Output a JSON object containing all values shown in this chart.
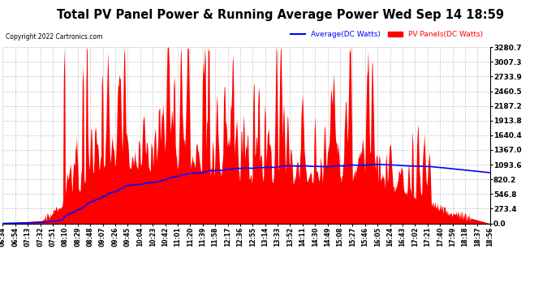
{
  "title": "Total PV Panel Power & Running Average Power Wed Sep 14 18:59",
  "copyright": "Copyright 2022 Cartronics.com",
  "legend_avg": "Average(DC Watts)",
  "legend_pv": "PV Panels(DC Watts)",
  "ylabel_right_ticks": [
    0.0,
    273.4,
    546.8,
    820.2,
    1093.6,
    1367.0,
    1640.4,
    1913.8,
    2187.2,
    2460.5,
    2733.9,
    3007.3,
    3280.7
  ],
  "ymax": 3280.7,
  "ymin": 0.0,
  "background_color": "#ffffff",
  "plot_bg_color": "#ffffff",
  "grid_color": "#aaaaaa",
  "pv_fill_color": "#ff0000",
  "avg_line_color": "#0000ff",
  "title_fontsize": 11,
  "copyright_color": "#000000",
  "x_time_labels": [
    "06:34",
    "06:54",
    "07:13",
    "07:32",
    "07:51",
    "08:10",
    "08:29",
    "08:48",
    "09:07",
    "09:26",
    "09:45",
    "10:04",
    "10:23",
    "10:42",
    "11:01",
    "11:20",
    "11:39",
    "11:58",
    "12:17",
    "12:36",
    "12:55",
    "13:14",
    "13:33",
    "13:52",
    "14:11",
    "14:30",
    "14:49",
    "15:08",
    "15:27",
    "15:46",
    "16:05",
    "16:24",
    "16:43",
    "17:02",
    "17:21",
    "17:40",
    "17:59",
    "18:18",
    "18:37",
    "18:56"
  ]
}
